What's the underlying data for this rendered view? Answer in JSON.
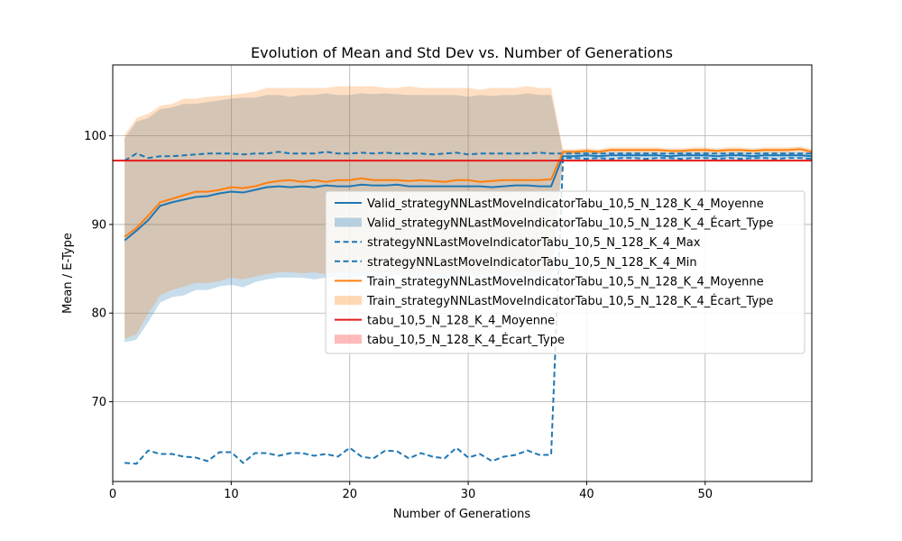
{
  "chart_data": {
    "type": "line",
    "title": "Evolution of Mean and Std Dev vs. Number of Generations",
    "xlabel": "Number of Generations",
    "ylabel": "Mean / E-Type",
    "xlim": [
      0,
      59
    ],
    "ylim": [
      61,
      108
    ],
    "xticks": [
      0,
      10,
      20,
      30,
      40,
      50
    ],
    "yticks": [
      70,
      80,
      90,
      100
    ],
    "grid": true,
    "legend_position": "center-right",
    "x": [
      1,
      2,
      3,
      4,
      5,
      6,
      7,
      8,
      9,
      10,
      11,
      12,
      13,
      14,
      15,
      16,
      17,
      18,
      19,
      20,
      21,
      22,
      23,
      24,
      25,
      26,
      27,
      28,
      29,
      30,
      31,
      32,
      33,
      34,
      35,
      36,
      37,
      38,
      39,
      40,
      41,
      42,
      43,
      44,
      45,
      46,
      47,
      48,
      49,
      50,
      51,
      52,
      53,
      54,
      55,
      56,
      57,
      58,
      59
    ],
    "series": [
      {
        "name": "Valid_strategyNNLastMoveIndicatorTabu_10,5_N_128_K_4_Moyenne",
        "kind": "line",
        "color": "#1f77b4",
        "dash": "solid",
        "values": [
          88.2,
          89.3,
          90.5,
          92.1,
          92.5,
          92.8,
          93.1,
          93.2,
          93.5,
          93.7,
          93.6,
          93.9,
          94.2,
          94.3,
          94.2,
          94.3,
          94.2,
          94.4,
          94.3,
          94.3,
          94.5,
          94.4,
          94.4,
          94.5,
          94.3,
          94.3,
          94.3,
          94.3,
          94.3,
          94.3,
          94.3,
          94.2,
          94.3,
          94.4,
          94.4,
          94.3,
          94.3,
          97.7,
          97.7,
          97.8,
          97.7,
          97.8,
          97.8,
          97.8,
          97.8,
          97.8,
          97.7,
          97.8,
          97.8,
          97.8,
          97.7,
          97.8,
          97.8,
          97.7,
          97.8,
          97.8,
          97.8,
          97.8,
          97.7
        ]
      },
      {
        "name": "Valid_strategyNNLastMoveIndicatorTabu_10,5_N_128_K_4_Écart_Type",
        "kind": "band",
        "color": "#1f77b4",
        "opacity": 0.25,
        "lower": [
          76.7,
          77.0,
          79.0,
          81.2,
          81.8,
          82.0,
          82.6,
          82.6,
          83.0,
          83.2,
          82.9,
          83.5,
          83.8,
          84.0,
          84.0,
          84.0,
          83.8,
          84.0,
          84.0,
          84.0,
          84.2,
          84.1,
          84.0,
          84.3,
          84.0,
          84.0,
          84.0,
          84.0,
          84.0,
          84.2,
          84.0,
          83.9,
          84.0,
          84.2,
          84.0,
          84.0,
          84.0,
          97.3,
          97.3,
          97.4,
          97.3,
          97.4,
          97.4,
          97.4,
          97.4,
          97.4,
          97.3,
          97.4,
          97.4,
          97.4,
          97.3,
          97.4,
          97.4,
          97.3,
          97.4,
          97.4,
          97.4,
          97.4,
          97.3
        ],
        "upper": [
          99.7,
          101.6,
          102.0,
          103.0,
          103.2,
          103.6,
          103.6,
          103.8,
          104.0,
          104.2,
          104.3,
          104.3,
          104.6,
          104.6,
          104.4,
          104.6,
          104.6,
          104.8,
          104.6,
          104.6,
          104.8,
          104.7,
          104.8,
          104.7,
          104.6,
          104.6,
          104.6,
          104.6,
          104.6,
          104.4,
          104.6,
          104.5,
          104.6,
          104.6,
          104.8,
          104.6,
          104.6,
          98.1,
          98.1,
          98.2,
          98.1,
          98.2,
          98.2,
          98.2,
          98.2,
          98.2,
          98.1,
          98.2,
          98.2,
          98.2,
          98.1,
          98.2,
          98.2,
          98.1,
          98.2,
          98.2,
          98.2,
          98.2,
          98.1
        ]
      },
      {
        "name": "strategyNNLastMoveIndicatorTabu_10,5_N_128_K_4_Max",
        "kind": "line",
        "color": "#1f77b4",
        "dash": "dashed",
        "values": [
          97.2,
          98.0,
          97.5,
          97.7,
          97.7,
          97.8,
          97.9,
          98.0,
          98.0,
          98.0,
          97.9,
          98.0,
          98.0,
          98.2,
          98.0,
          98.0,
          98.0,
          98.2,
          98.0,
          98.0,
          98.1,
          98.0,
          98.1,
          98.0,
          98.0,
          98.0,
          97.9,
          98.0,
          98.1,
          97.9,
          98.0,
          98.0,
          98.0,
          98.0,
          98.0,
          98.1,
          98.0,
          98.0,
          98.0,
          98.0,
          98.0,
          98.0,
          98.0,
          98.0,
          98.0,
          98.0,
          98.0,
          98.0,
          98.0,
          98.0,
          98.0,
          98.0,
          98.0,
          98.0,
          98.0,
          98.0,
          98.0,
          98.0,
          98.0
        ]
      },
      {
        "name": "strategyNNLastMoveIndicatorTabu_10,5_N_128_K_4_Min",
        "kind": "line",
        "color": "#1f77b4",
        "dash": "dashed",
        "values": [
          63.1,
          63.0,
          64.5,
          64.1,
          64.1,
          63.8,
          63.7,
          63.3,
          64.3,
          64.3,
          63.1,
          64.2,
          64.2,
          63.9,
          64.2,
          64.2,
          63.9,
          64.1,
          63.8,
          64.8,
          63.8,
          63.6,
          64.5,
          64.4,
          63.6,
          64.2,
          63.8,
          63.6,
          64.8,
          63.7,
          64.1,
          63.3,
          63.8,
          64.0,
          64.5,
          64.0,
          64.0,
          97.5,
          97.5,
          97.4,
          97.5,
          97.4,
          97.5,
          97.5,
          97.4,
          97.5,
          97.5,
          97.4,
          97.5,
          97.5,
          97.4,
          97.5,
          97.4,
          97.5,
          97.5,
          97.4,
          97.5,
          97.5,
          97.4
        ]
      },
      {
        "name": "Train_strategyNNLastMoveIndicatorTabu_10,5_N_128_K_4_Moyenne",
        "kind": "line",
        "color": "#ff7f0e",
        "dash": "solid",
        "values": [
          88.6,
          89.6,
          91.0,
          92.5,
          92.9,
          93.3,
          93.7,
          93.7,
          93.9,
          94.2,
          94.1,
          94.3,
          94.7,
          94.9,
          95.0,
          94.8,
          95.0,
          94.8,
          95.0,
          95.0,
          95.2,
          95.0,
          95.0,
          95.0,
          94.9,
          95.0,
          94.9,
          94.8,
          95.0,
          95.0,
          94.8,
          94.9,
          95.0,
          95.0,
          95.0,
          95.0,
          95.1,
          98.2,
          98.2,
          98.3,
          98.2,
          98.4,
          98.4,
          98.4,
          98.4,
          98.4,
          98.3,
          98.3,
          98.4,
          98.4,
          98.3,
          98.4,
          98.4,
          98.3,
          98.4,
          98.4,
          98.4,
          98.5,
          98.2
        ]
      },
      {
        "name": "Train_strategyNNLastMoveIndicatorTabu_10,5_N_128_K_4_Écart_Type",
        "kind": "band",
        "color": "#ff7f0e",
        "opacity": 0.25,
        "lower": [
          77.1,
          77.6,
          80.0,
          82.0,
          82.6,
          83.0,
          83.4,
          83.4,
          83.6,
          84.0,
          83.8,
          84.1,
          84.4,
          84.6,
          84.6,
          84.5,
          84.6,
          84.4,
          84.6,
          84.6,
          84.8,
          84.6,
          84.6,
          84.6,
          84.5,
          84.6,
          84.5,
          84.4,
          84.6,
          84.6,
          84.4,
          84.5,
          84.6,
          84.6,
          84.6,
          84.6,
          84.7,
          97.9,
          97.9,
          98.0,
          97.9,
          98.1,
          98.1,
          98.1,
          98.1,
          98.1,
          98.0,
          98.0,
          98.1,
          98.1,
          98.0,
          98.1,
          98.1,
          98.0,
          98.1,
          98.1,
          98.1,
          98.2,
          97.9
        ],
        "upper": [
          100.1,
          102.0,
          102.5,
          103.4,
          103.6,
          104.2,
          104.2,
          104.4,
          104.5,
          104.6,
          104.8,
          105.0,
          105.4,
          105.4,
          105.4,
          105.4,
          105.4,
          105.4,
          105.6,
          105.6,
          105.6,
          105.6,
          105.4,
          105.4,
          105.6,
          105.4,
          105.4,
          105.4,
          105.4,
          105.4,
          105.2,
          105.4,
          105.4,
          105.4,
          105.6,
          105.4,
          105.4,
          98.5,
          98.5,
          98.6,
          98.5,
          98.7,
          98.7,
          98.7,
          98.7,
          98.7,
          98.6,
          98.6,
          98.7,
          98.7,
          98.6,
          98.7,
          98.7,
          98.6,
          98.7,
          98.7,
          98.7,
          98.8,
          98.5
        ]
      },
      {
        "name": "tabu_10,5_N_128_K_4_Moyenne",
        "kind": "hline",
        "color": "#e41a1c",
        "dash": "solid",
        "value": 97.2
      },
      {
        "name": "tabu_10,5_N_128_K_4_Écart_Type",
        "kind": "band",
        "color": "#ff0000",
        "opacity": 0.22,
        "lower_const": 97.2,
        "upper_const": 97.2
      }
    ]
  }
}
